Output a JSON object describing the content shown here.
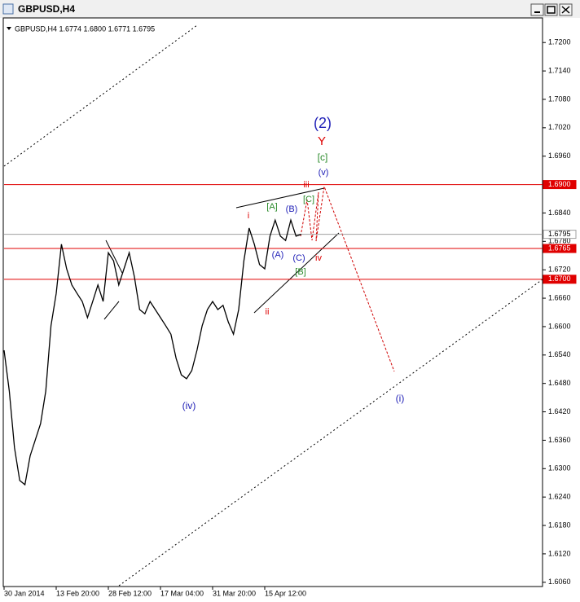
{
  "chart_data": {
    "type": "line",
    "title": "GBPUSD,H4",
    "subtitle": "GBPUSD,H4  1.6774 1.6800 1.6771 1.6795",
    "color": "#000000",
    "categories": [
      "30 Jan 2014",
      null,
      null,
      null,
      null,
      null,
      null,
      null,
      null,
      null,
      "13 Feb 20:00",
      null,
      null,
      null,
      null,
      null,
      null,
      null,
      null,
      null,
      "28 Feb 12:00",
      null,
      null,
      null,
      null,
      null,
      null,
      null,
      null,
      null,
      "17 Mar 04:00",
      null,
      null,
      null,
      null,
      null,
      null,
      null,
      null,
      null,
      "31 Mar 20:00",
      null,
      null,
      null,
      null,
      null,
      null,
      null,
      null,
      null,
      "15 Apr 12:00",
      null,
      null,
      null,
      null,
      null,
      null,
      null
    ],
    "values": [
      1.655,
      1.6464,
      1.6344,
      1.6275,
      1.6266,
      1.6327,
      1.6361,
      1.6395,
      1.6464,
      1.6602,
      1.667,
      1.6774,
      1.6722,
      1.6688,
      1.667,
      1.6653,
      1.6619,
      1.6653,
      1.6688,
      1.6653,
      1.6756,
      1.6739,
      1.6688,
      1.6722,
      1.6756,
      1.6705,
      1.6636,
      1.6627,
      1.6653,
      1.6636,
      1.6619,
      1.6602,
      1.6584,
      1.6533,
      1.6498,
      1.649,
      1.6507,
      1.655,
      1.6602,
      1.6636,
      1.6653,
      1.6636,
      1.6645,
      1.661,
      1.6584,
      1.6636,
      1.6739,
      1.6808,
      1.6774,
      1.6731,
      1.6722,
      1.6791,
      1.6825,
      1.6791,
      1.6782,
      1.6825,
      1.6791,
      1.6795
    ],
    "ylim": [
      1.6051,
      1.7252
    ],
    "yticks": [
      {
        "value": 1.72,
        "label": "1.7200"
      },
      {
        "value": 1.714,
        "label": "1.7140"
      },
      {
        "value": 1.708,
        "label": "1.7080"
      },
      {
        "value": 1.702,
        "label": "1.7020"
      },
      {
        "value": 1.696,
        "label": "1.6960"
      },
      {
        "value": 1.69,
        "label": "1.6900"
      },
      {
        "value": 1.684,
        "label": "1.6840"
      },
      {
        "value": 1.678,
        "label": "1.6780"
      },
      {
        "value": 1.672,
        "label": "1.6720"
      },
      {
        "value": 1.666,
        "label": "1.6660"
      },
      {
        "value": 1.66,
        "label": "1.6600"
      },
      {
        "value": 1.654,
        "label": "1.6540"
      },
      {
        "value": 1.648,
        "label": "1.6480"
      },
      {
        "value": 1.642,
        "label": "1.6420"
      },
      {
        "value": 1.636,
        "label": "1.6360"
      },
      {
        "value": 1.63,
        "label": "1.6300"
      },
      {
        "value": 1.624,
        "label": "1.6240"
      },
      {
        "value": 1.618,
        "label": "1.6180"
      },
      {
        "value": 1.612,
        "label": "1.6120"
      },
      {
        "value": 1.606,
        "label": "1.6060"
      }
    ],
    "levels": [
      {
        "value": 1.69,
        "label": "1.6900",
        "color": "#e00000"
      },
      {
        "value": 1.6795,
        "label": "1.6795",
        "color": "#a0a0a0"
      },
      {
        "value": 1.6765,
        "label": "1.6765",
        "color": "#e00000"
      },
      {
        "value": 1.67,
        "label": "1.6700",
        "color": "#e00000"
      }
    ],
    "annotations": [
      {
        "text": "(2)",
        "color": "#2222b8"
      },
      {
        "text": "Y",
        "color": "#dd0000"
      },
      {
        "text": "[c]",
        "color": "#2a8a2a"
      },
      {
        "text": "(v)",
        "color": "#2222b8"
      },
      {
        "text": "iii",
        "color": "#dd0000"
      },
      {
        "text": "[C]",
        "color": "#2a8a2a"
      },
      {
        "text": "[A]",
        "color": "#2a8a2a"
      },
      {
        "text": "(B)",
        "color": "#2222b8"
      },
      {
        "text": "i",
        "color": "#dd0000"
      },
      {
        "text": "(A)",
        "color": "#2222b8"
      },
      {
        "text": "(C)",
        "color": "#2222b8"
      },
      {
        "text": "iv",
        "color": "#dd0000"
      },
      {
        "text": "[B]",
        "color": "#2a8a2a"
      },
      {
        "text": "ii",
        "color": "#dd0000"
      },
      {
        "text": "(iv)",
        "color": "#2222b8"
      },
      {
        "text": "(i)",
        "color": "#2222b8"
      }
    ]
  }
}
